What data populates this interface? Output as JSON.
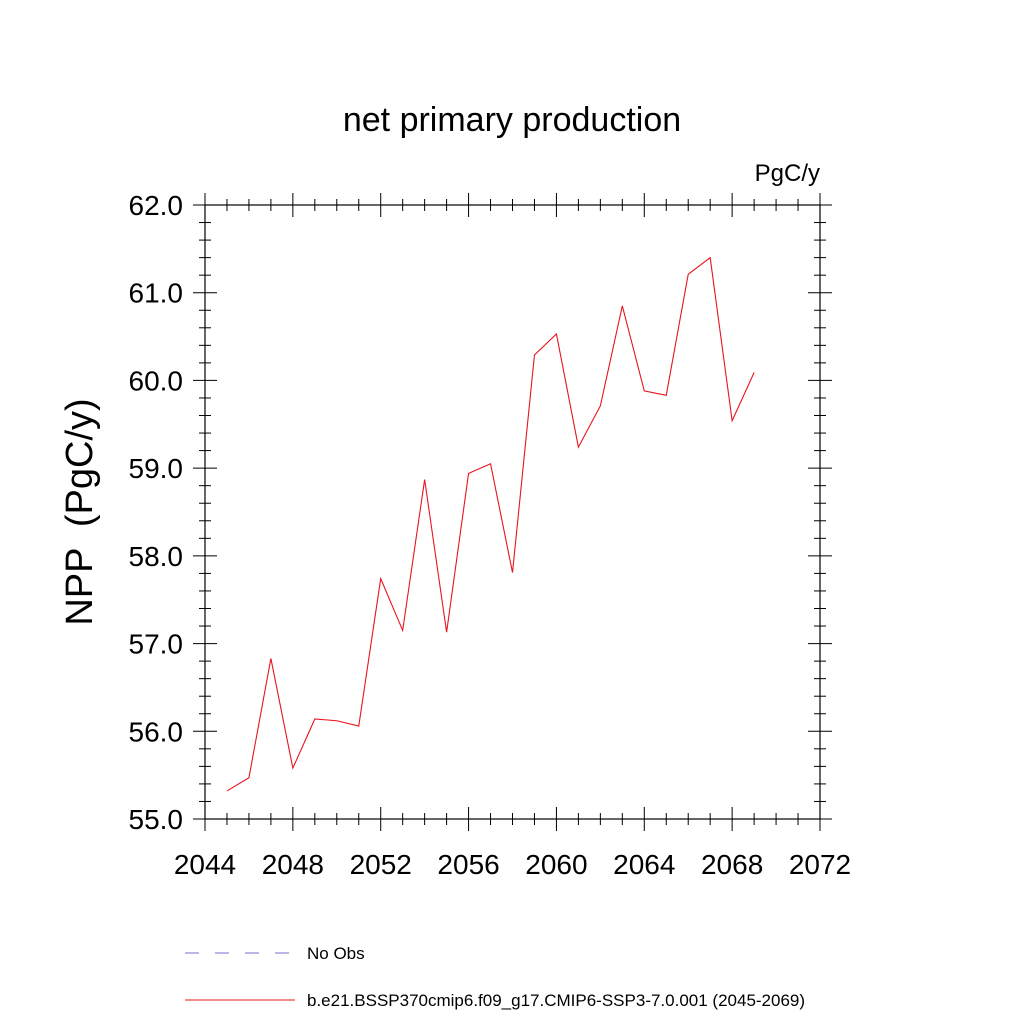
{
  "chart_data": {
    "type": "line",
    "title": "net primary production",
    "units": "PgC/y",
    "ylabel": "NPP  (PgC/y)",
    "xlabel": "",
    "xlim": [
      2044,
      2072
    ],
    "ylim": [
      55.0,
      62.0
    ],
    "xticks": [
      2044,
      2048,
      2052,
      2056,
      2060,
      2064,
      2068,
      2072
    ],
    "xtick_labels": [
      "2044",
      "2048",
      "2052",
      "2056",
      "2060",
      "2064",
      "2068",
      "2072"
    ],
    "yticks": [
      55,
      56,
      57,
      58,
      59,
      60,
      61,
      62
    ],
    "ytick_labels": [
      "55.0",
      "56.0",
      "57.0",
      "58.0",
      "59.0",
      "60.0",
      "61.0",
      "62.0"
    ],
    "grid": false,
    "legend_position": "bottom",
    "series": [
      {
        "name": "b.e21.BSSP370cmip6.f09_g17.CMIP6-SSP3-7.0.001 (2045-2069)",
        "color": "#e8141e",
        "style": "solid",
        "x": [
          2045,
          2046,
          2047,
          2048,
          2049,
          2050,
          2051,
          2052,
          2053,
          2054,
          2055,
          2056,
          2057,
          2058,
          2059,
          2060,
          2061,
          2062,
          2063,
          2064,
          2065,
          2066,
          2067,
          2068,
          2069
        ],
        "y": [
          55.32,
          55.47,
          56.83,
          55.58,
          56.14,
          56.12,
          56.06,
          57.74,
          57.15,
          58.87,
          57.13,
          58.94,
          59.05,
          57.81,
          60.29,
          60.53,
          59.24,
          59.71,
          60.85,
          59.88,
          59.83,
          61.21,
          61.4,
          59.54,
          60.09
        ]
      }
    ],
    "legend": [
      {
        "label": "No Obs",
        "color": "#7a6fcf",
        "style": "dashed"
      },
      {
        "label": "b.e21.BSSP370cmip6.f09_g17.CMIP6-SSP3-7.0.001 (2045-2069)",
        "color": "#e8141e",
        "style": "solid"
      }
    ]
  }
}
